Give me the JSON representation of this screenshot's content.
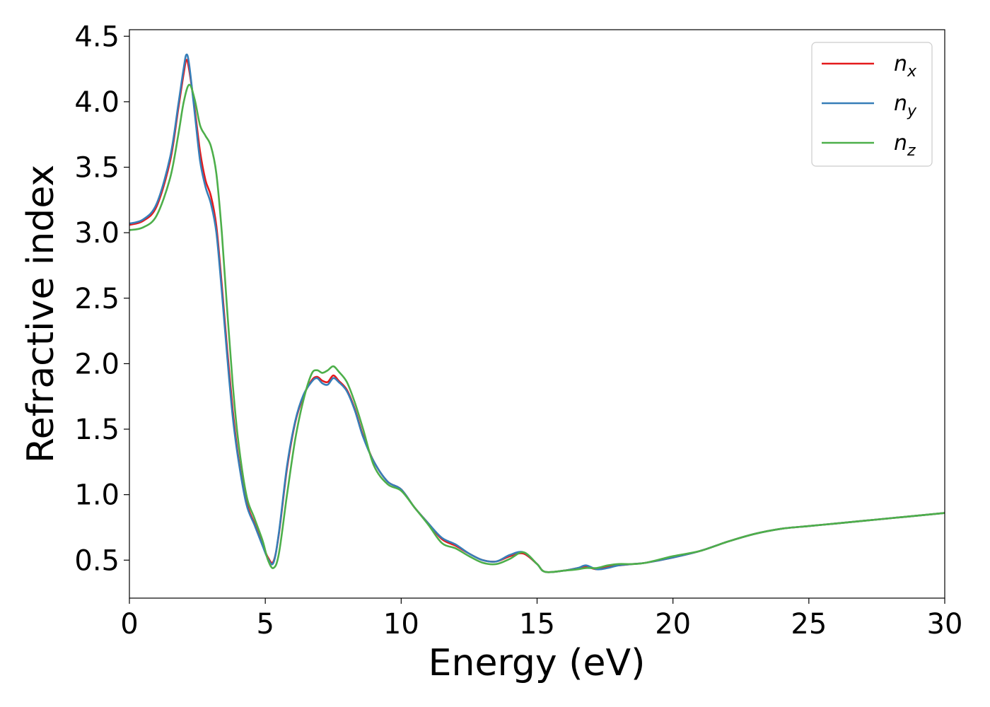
{
  "chart_data": {
    "type": "line",
    "xlabel": "Energy (eV)",
    "ylabel": "Refractive index",
    "xlim": [
      0,
      30
    ],
    "ylim": [
      0.21,
      4.55
    ],
    "xticks": [
      0,
      5,
      10,
      15,
      20,
      25,
      30
    ],
    "xtick_labels": [
      "0",
      "5",
      "10",
      "15",
      "20",
      "25",
      "30"
    ],
    "yticks": [
      0.5,
      1.0,
      1.5,
      2.0,
      2.5,
      3.0,
      3.5,
      4.0,
      4.5
    ],
    "ytick_labels": [
      "0.5",
      "1.0",
      "1.5",
      "2.0",
      "2.5",
      "3.0",
      "3.5",
      "4.0",
      "4.5"
    ],
    "grid": false,
    "legend_position": "top-right",
    "series": [
      {
        "name": "n_x",
        "label_base": "n",
        "label_sub": "x",
        "color": "#e41a1c",
        "x": [
          0,
          0.5,
          1.0,
          1.5,
          1.8,
          2.0,
          2.1,
          2.2,
          2.4,
          2.6,
          2.8,
          3.0,
          3.2,
          3.4,
          3.6,
          3.8,
          4.0,
          4.3,
          4.6,
          4.9,
          5.1,
          5.3,
          5.5,
          5.8,
          6.1,
          6.4,
          6.7,
          6.9,
          7.1,
          7.3,
          7.5,
          7.7,
          8.0,
          8.3,
          8.6,
          9.0,
          9.5,
          10.0,
          10.5,
          11.0,
          11.5,
          12.0,
          12.5,
          13.0,
          13.5,
          14.0,
          14.5,
          15.0,
          15.3,
          16.0,
          16.5,
          16.8,
          17.2,
          17.6,
          18.0,
          18.5,
          19.0,
          20.0,
          21.0,
          22.0,
          23.0,
          24.0,
          25.0,
          26.0,
          27.0,
          28.0,
          29.0,
          30.0
        ],
        "y": [
          3.06,
          3.09,
          3.2,
          3.55,
          3.95,
          4.22,
          4.32,
          4.24,
          3.95,
          3.62,
          3.4,
          3.28,
          3.05,
          2.6,
          2.1,
          1.65,
          1.3,
          0.95,
          0.78,
          0.62,
          0.52,
          0.49,
          0.7,
          1.2,
          1.55,
          1.75,
          1.87,
          1.9,
          1.87,
          1.86,
          1.91,
          1.87,
          1.8,
          1.65,
          1.45,
          1.25,
          1.1,
          1.04,
          0.9,
          0.78,
          0.66,
          0.61,
          0.55,
          0.5,
          0.49,
          0.53,
          0.55,
          0.47,
          0.41,
          0.42,
          0.44,
          0.45,
          0.43,
          0.45,
          0.46,
          0.47,
          0.48,
          0.52,
          0.57,
          0.64,
          0.7,
          0.74,
          0.76,
          0.78,
          0.8,
          0.82,
          0.84,
          0.86
        ]
      },
      {
        "name": "n_y",
        "label_base": "n",
        "label_sub": "y",
        "color": "#377eb8",
        "x": [
          0,
          0.5,
          1.0,
          1.5,
          1.8,
          2.0,
          2.1,
          2.2,
          2.4,
          2.6,
          2.8,
          3.0,
          3.2,
          3.4,
          3.6,
          3.8,
          4.0,
          4.3,
          4.6,
          4.9,
          5.1,
          5.3,
          5.5,
          5.8,
          6.1,
          6.4,
          6.7,
          6.9,
          7.1,
          7.3,
          7.5,
          7.7,
          8.0,
          8.3,
          8.6,
          9.0,
          9.5,
          10.0,
          10.5,
          11.0,
          11.5,
          12.0,
          12.5,
          13.0,
          13.5,
          14.0,
          14.5,
          15.0,
          15.3,
          16.0,
          16.5,
          16.8,
          17.2,
          17.6,
          18.0,
          18.5,
          19.0,
          20.0,
          21.0,
          22.0,
          23.0,
          24.0,
          25.0,
          26.0,
          27.0,
          28.0,
          29.0,
          30.0
        ],
        "y": [
          3.07,
          3.1,
          3.22,
          3.58,
          3.98,
          4.26,
          4.36,
          4.28,
          3.92,
          3.55,
          3.35,
          3.22,
          3.0,
          2.55,
          2.05,
          1.6,
          1.28,
          0.93,
          0.77,
          0.61,
          0.51,
          0.48,
          0.71,
          1.22,
          1.56,
          1.76,
          1.86,
          1.89,
          1.85,
          1.84,
          1.89,
          1.86,
          1.79,
          1.64,
          1.44,
          1.25,
          1.1,
          1.04,
          0.9,
          0.78,
          0.67,
          0.62,
          0.55,
          0.5,
          0.49,
          0.54,
          0.56,
          0.47,
          0.41,
          0.42,
          0.44,
          0.46,
          0.43,
          0.44,
          0.46,
          0.47,
          0.48,
          0.52,
          0.57,
          0.64,
          0.7,
          0.74,
          0.76,
          0.78,
          0.8,
          0.82,
          0.84,
          0.86
        ]
      },
      {
        "name": "n_z",
        "label_base": "n",
        "label_sub": "z",
        "color": "#4daf4a",
        "x": [
          0,
          0.5,
          1.0,
          1.5,
          1.8,
          2.0,
          2.2,
          2.4,
          2.6,
          2.8,
          3.0,
          3.2,
          3.4,
          3.6,
          3.8,
          4.0,
          4.3,
          4.6,
          4.9,
          5.1,
          5.3,
          5.5,
          5.8,
          6.1,
          6.4,
          6.7,
          6.9,
          7.1,
          7.3,
          7.5,
          7.7,
          8.0,
          8.3,
          8.6,
          9.0,
          9.5,
          10.0,
          10.5,
          11.0,
          11.5,
          12.0,
          12.5,
          13.0,
          13.5,
          14.0,
          14.5,
          15.0,
          15.3,
          16.0,
          16.5,
          16.8,
          17.2,
          17.6,
          18.0,
          18.5,
          19.0,
          20.0,
          21.0,
          22.0,
          23.0,
          24.0,
          25.0,
          26.0,
          27.0,
          28.0,
          29.0,
          30.0
        ],
        "y": [
          3.02,
          3.04,
          3.13,
          3.42,
          3.75,
          4.0,
          4.13,
          4.02,
          3.82,
          3.74,
          3.66,
          3.45,
          3.0,
          2.4,
          1.85,
          1.42,
          1.0,
          0.82,
          0.65,
          0.5,
          0.44,
          0.55,
          1.0,
          1.42,
          1.72,
          1.92,
          1.95,
          1.93,
          1.95,
          1.98,
          1.94,
          1.86,
          1.7,
          1.5,
          1.22,
          1.08,
          1.03,
          0.9,
          0.77,
          0.63,
          0.59,
          0.53,
          0.48,
          0.47,
          0.51,
          0.56,
          0.47,
          0.41,
          0.42,
          0.43,
          0.44,
          0.44,
          0.46,
          0.47,
          0.47,
          0.48,
          0.53,
          0.57,
          0.64,
          0.7,
          0.74,
          0.76,
          0.78,
          0.8,
          0.82,
          0.84,
          0.86
        ]
      }
    ]
  }
}
